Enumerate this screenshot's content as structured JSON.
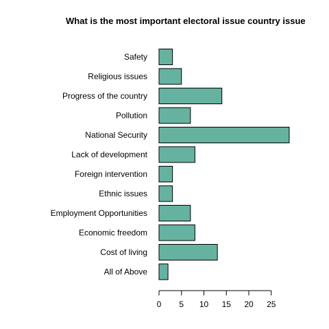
{
  "chart_data": {
    "type": "bar",
    "orientation": "horizontal",
    "title": "What is the most important electoral issue  country issue",
    "xlabel": "",
    "ylabel": "",
    "categories": [
      "Safety",
      "Religious issues",
      "Progress of the country",
      "Pollution",
      "National Security",
      "Lack of development",
      "Foreign intervention",
      "Ethnic issues",
      "Employment Opportunities",
      "Economic freedom",
      "Cost of living",
      "All of Above"
    ],
    "values": [
      3,
      5,
      14,
      7,
      29,
      8,
      3,
      3,
      7,
      8,
      13,
      2
    ],
    "xlim": [
      0,
      29
    ],
    "xticks": [
      0,
      5,
      10,
      15,
      20,
      25
    ],
    "bar_color": "#66b2a0",
    "edge_color": "#000000",
    "grid": false,
    "legend": "none"
  }
}
